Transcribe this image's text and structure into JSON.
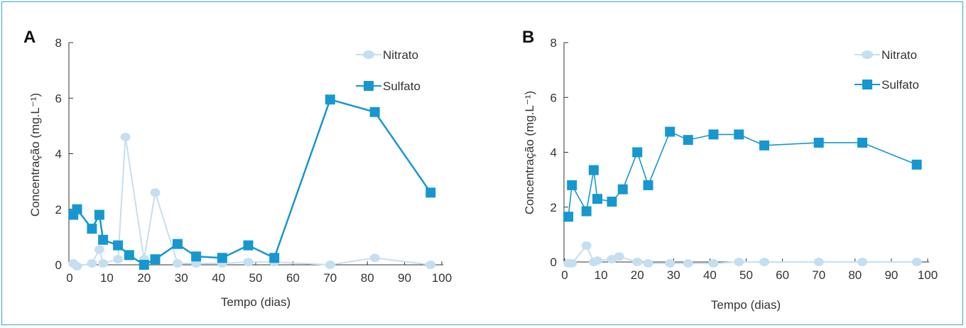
{
  "panels": [
    "A",
    "B"
  ],
  "chart_data": [
    {
      "panel": "A",
      "type": "line",
      "xlabel": "Tempo (dias)",
      "ylabel": "Concentração (mg.L⁻¹)",
      "xlim": [
        0,
        100
      ],
      "ylim": [
        0,
        8
      ],
      "xticks": [
        "0",
        "10",
        "20",
        "30",
        "40",
        "50",
        "60",
        "70",
        "80",
        "90",
        "100"
      ],
      "yticks": [
        "0",
        "2",
        "4",
        "6",
        "8"
      ],
      "legend_position": "top-right",
      "series": [
        {
          "name": "Nitrato",
          "marker": "circle",
          "color": "#c5dff0",
          "points": [
            [
              1,
              0.05
            ],
            [
              2,
              -0.05
            ],
            [
              6,
              0.05
            ],
            [
              8,
              0.55
            ],
            [
              9,
              0.05
            ],
            [
              13,
              0.2
            ],
            [
              15,
              4.6
            ],
            [
              20,
              0.2
            ],
            [
              23,
              2.6
            ],
            [
              29,
              0.05
            ],
            [
              34,
              0.05
            ],
            [
              41,
              0.05
            ],
            [
              48,
              0.1
            ],
            [
              55,
              0.1
            ],
            [
              70,
              0.0
            ],
            [
              82,
              0.25
            ],
            [
              97,
              0.0
            ]
          ]
        },
        {
          "name": "Sulfato",
          "marker": "square",
          "color": "#1797cf",
          "points": [
            [
              1,
              1.8
            ],
            [
              2,
              2.0
            ],
            [
              6,
              1.3
            ],
            [
              8,
              1.8
            ],
            [
              9,
              0.9
            ],
            [
              13,
              0.7
            ],
            [
              16,
              0.35
            ],
            [
              20,
              0.0
            ],
            [
              23,
              0.2
            ],
            [
              29,
              0.75
            ],
            [
              34,
              0.3
            ],
            [
              41,
              0.25
            ],
            [
              48,
              0.7
            ],
            [
              55,
              0.25
            ],
            [
              70,
              5.95
            ],
            [
              82,
              5.5
            ],
            [
              97,
              2.6
            ]
          ]
        }
      ]
    },
    {
      "panel": "B",
      "type": "line",
      "xlabel": "Tempo (dias)",
      "ylabel": "Concentração (mg.L⁻¹)",
      "xlim": [
        0,
        100
      ],
      "ylim": [
        0,
        8
      ],
      "xticks": [
        "0",
        "10",
        "20",
        "30",
        "40",
        "50",
        "60",
        "70",
        "80",
        "90",
        "100"
      ],
      "yticks": [
        "0",
        "2",
        "4",
        "6",
        "8"
      ],
      "legend_position": "top-right",
      "series": [
        {
          "name": "Nitrato",
          "marker": "circle",
          "color": "#c5dff0",
          "points": [
            [
              1,
              -0.05
            ],
            [
              2,
              -0.05
            ],
            [
              6,
              0.6
            ],
            [
              8,
              0.0
            ],
            [
              9,
              0.05
            ],
            [
              13,
              0.1
            ],
            [
              15,
              0.2
            ],
            [
              20,
              0.0
            ],
            [
              23,
              -0.05
            ],
            [
              29,
              -0.05
            ],
            [
              34,
              -0.05
            ],
            [
              41,
              -0.05
            ],
            [
              48,
              0.0
            ],
            [
              55,
              0.0
            ],
            [
              70,
              0.0
            ],
            [
              82,
              0.0
            ],
            [
              97,
              0.0
            ]
          ]
        },
        {
          "name": "Sulfato",
          "marker": "square",
          "color": "#1797cf",
          "points": [
            [
              1,
              1.65
            ],
            [
              2,
              2.8
            ],
            [
              6,
              1.85
            ],
            [
              8,
              3.35
            ],
            [
              9,
              2.3
            ],
            [
              13,
              2.2
            ],
            [
              16,
              2.65
            ],
            [
              20,
              4.0
            ],
            [
              23,
              2.8
            ],
            [
              29,
              4.75
            ],
            [
              34,
              4.45
            ],
            [
              41,
              4.65
            ],
            [
              48,
              4.65
            ],
            [
              55,
              4.25
            ],
            [
              70,
              4.35
            ],
            [
              82,
              4.35
            ],
            [
              97,
              3.55
            ]
          ]
        }
      ]
    }
  ]
}
